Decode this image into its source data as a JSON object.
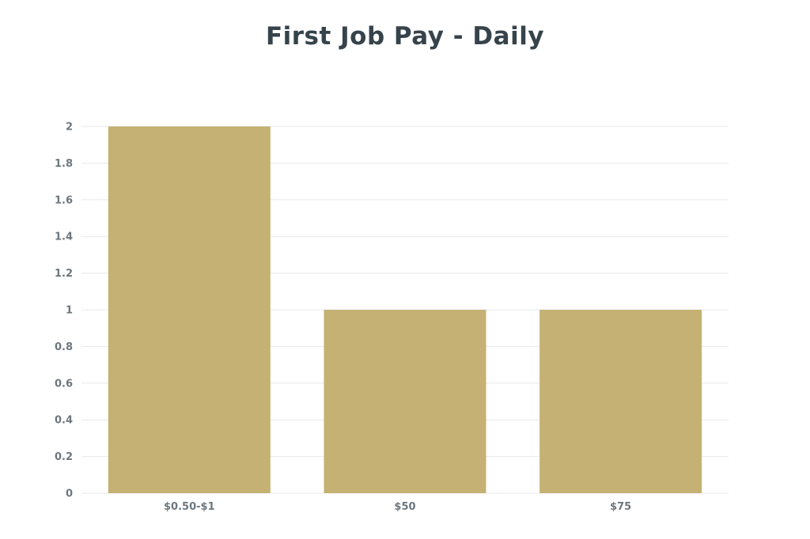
{
  "chart_data": {
    "type": "bar",
    "title": "First Job Pay -  Daily",
    "categories": [
      "$0.50-$1",
      "$50",
      "$75"
    ],
    "values": [
      2,
      1,
      1
    ],
    "xlabel": "",
    "ylabel": "",
    "ylim": [
      0,
      2
    ],
    "yticks": [
      "0",
      "0.2",
      "0.4",
      "0.6",
      "0.8",
      "1",
      "1.2",
      "1.4",
      "1.6",
      "1.8",
      "2"
    ],
    "grid": true,
    "legend": "none",
    "colors": {
      "bar": "#c5b173",
      "grid": "#e6e8eb",
      "title": "#36434b",
      "tick_label": "#6d777e"
    }
  }
}
